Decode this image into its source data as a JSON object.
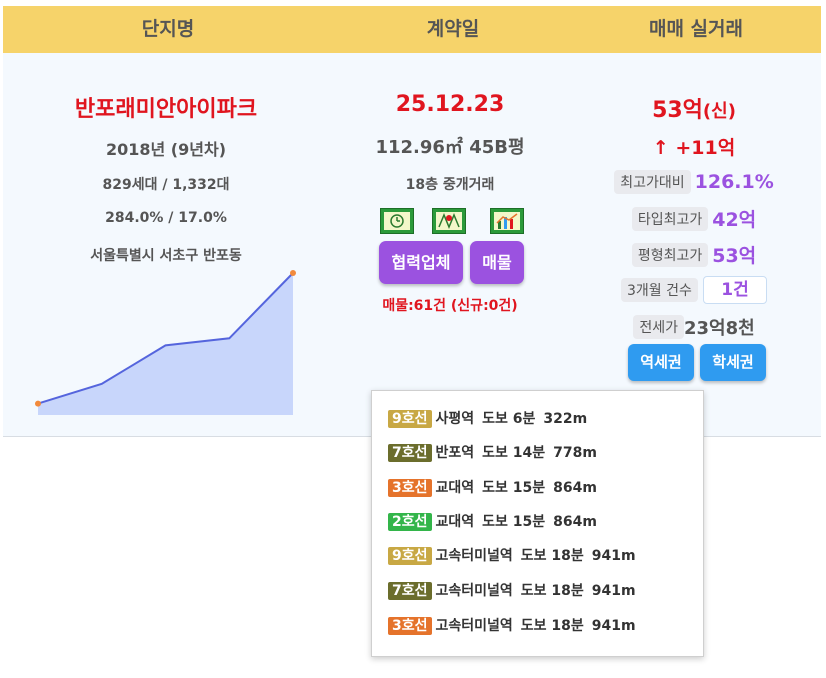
{
  "header": {
    "col1": "단지명",
    "col2": "계약일",
    "col3": "매매 실거래"
  },
  "complex": {
    "name": "반포래미안아이파크",
    "built": "2018년 (9년차)",
    "units": "829세대 / 1,332대",
    "ratio": "284.0% / 17.0%",
    "address": "서울특별시 서초구 반포동"
  },
  "price_trend": {
    "values": [
      0.08,
      0.22,
      0.49,
      0.54,
      1.0
    ]
  },
  "contract": {
    "date": "25.12.23",
    "area": "112.96㎡ 45B평",
    "floor": "18층 중개거래",
    "icons": [
      "clock-icon",
      "map-icon",
      "chart-icon"
    ],
    "partner_button": "협력업체",
    "listing_button": "매물",
    "listing_count": "매물:61건 (신규:0건)"
  },
  "trade": {
    "price": "53억",
    "price_suffix": "(신)",
    "change": "↑ +11억",
    "highest_ratio_label": "최고가대비",
    "highest_ratio": "126.1%",
    "type_high_label": "타입최고가",
    "type_high": "42억",
    "area_high_label": "평형최고가",
    "area_high": "53억",
    "recent_label": "3개월 건수",
    "recent_count": "1건",
    "jeonse_label": "전세가",
    "jeonse": "23억8천",
    "station_button": "역세권",
    "school_button": "학세권"
  },
  "stations": [
    {
      "line": "9호선",
      "color": "#c8a844",
      "name": "사평역",
      "walk": "도보 6분",
      "dist": "322m"
    },
    {
      "line": "7호선",
      "color": "#6b6d2c",
      "name": "반포역",
      "walk": "도보 14분",
      "dist": "778m"
    },
    {
      "line": "3호선",
      "color": "#e5732b",
      "name": "교대역",
      "walk": "도보 15분",
      "dist": "864m"
    },
    {
      "line": "2호선",
      "color": "#33b54a",
      "name": "교대역",
      "walk": "도보 15분",
      "dist": "864m"
    },
    {
      "line": "9호선",
      "color": "#c8a844",
      "name": "고속터미널역",
      "walk": "도보 18분",
      "dist": "941m"
    },
    {
      "line": "7호선",
      "color": "#6b6d2c",
      "name": "고속터미널역",
      "walk": "도보 18분",
      "dist": "941m"
    },
    {
      "line": "3호선",
      "color": "#e5732b",
      "name": "고속터미널역",
      "walk": "도보 18분",
      "dist": "941m"
    }
  ]
}
